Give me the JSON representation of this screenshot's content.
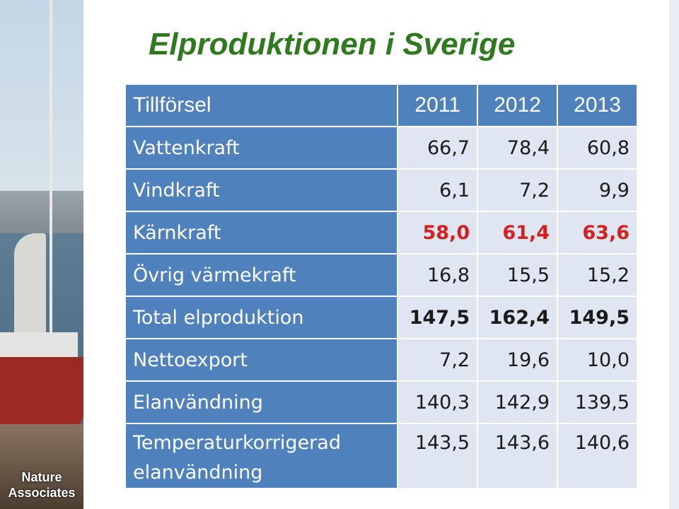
{
  "title": "Elproduktionen i Sverige",
  "logo": [
    "Nature",
    "Associates"
  ],
  "table": {
    "header": [
      "Tillförsel",
      "2011",
      "2012",
      "2013"
    ],
    "rows": [
      {
        "label": "Vattenkraft",
        "values": [
          "66,7",
          "78,4",
          "60,8"
        ],
        "style": "normal"
      },
      {
        "label": "Vindkraft",
        "values": [
          "6,1",
          "7,2",
          "9,9"
        ],
        "style": "normal"
      },
      {
        "label": "Kärnkraft",
        "values": [
          "58,0",
          "61,4",
          "63,6"
        ],
        "style": "red"
      },
      {
        "label": "Övrig värmekraft",
        "values": [
          "16,8",
          "15,5",
          "15,2"
        ],
        "style": "normal"
      },
      {
        "label": "Total elproduktion",
        "values": [
          "147,5",
          "162,4",
          "149,5"
        ],
        "style": "bold"
      },
      {
        "label": "Nettoexport",
        "values": [
          "7,2",
          "19,6",
          "10,0"
        ],
        "style": "normal"
      },
      {
        "label": "Elanvändning",
        "values": [
          "140,3",
          "142,9",
          "139,5"
        ],
        "style": "normal"
      },
      {
        "label": "Temperaturkorrigerad elanvändning",
        "values": [
          "143,5",
          "143,6",
          "140,6"
        ],
        "style": "tall"
      }
    ]
  },
  "colors": {
    "title": "#2f7a1f",
    "header_bg": "#4f81bd",
    "cell_bg": "#dfe6f1",
    "highlight": "#d61f1f"
  }
}
